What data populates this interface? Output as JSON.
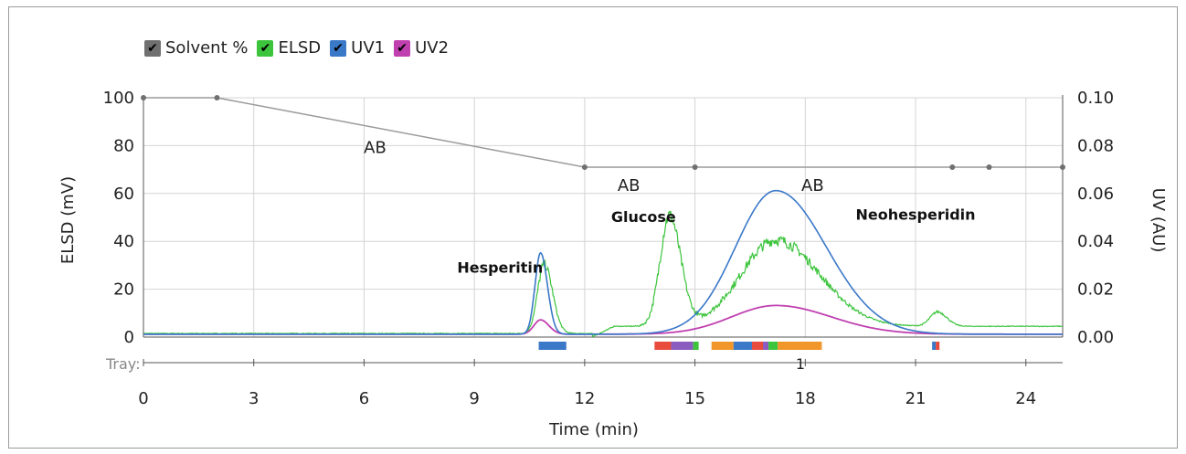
{
  "legend": [
    {
      "label": "Solvent %",
      "color": "#707070"
    },
    {
      "label": "ELSD",
      "color": "#3cc43c"
    },
    {
      "label": "UV1",
      "color": "#3a78c8"
    },
    {
      "label": "UV2",
      "color": "#c040b0"
    }
  ],
  "check_glyph": "✔",
  "tray_label": "Tray:",
  "tray_number": "1",
  "chart_data": {
    "type": "line",
    "xlabel": "Time (min)",
    "ylabel_left": "ELSD (mV)",
    "ylabel_right": "UV (AU)",
    "xlim": [
      0,
      25
    ],
    "ylim_left": [
      0,
      100
    ],
    "ylim_right": [
      0,
      0.1
    ],
    "x_ticks": [
      "0",
      "3",
      "6",
      "9",
      "12",
      "15",
      "18",
      "21",
      "24"
    ],
    "y_left_ticks": [
      "0",
      "20",
      "40",
      "60",
      "80",
      "100"
    ],
    "y_right_ticks": [
      "0.00",
      "0.02",
      "0.04",
      "0.06",
      "0.08",
      "0.10"
    ],
    "grid": true,
    "solvent_points": [
      [
        0,
        100
      ],
      [
        2,
        100
      ],
      [
        12,
        71
      ],
      [
        15,
        71
      ],
      [
        22,
        71
      ],
      [
        23,
        71
      ],
      [
        25,
        71
      ]
    ],
    "solvent_labels": [
      {
        "text": "AB",
        "x": 6.3,
        "y": 77
      },
      {
        "text": "AB",
        "x": 13.2,
        "y": 61
      },
      {
        "text": "AB",
        "x": 18.2,
        "y": 61
      }
    ],
    "peak_labels": [
      {
        "text": "Hesperitin",
        "x": 9.7,
        "y": 27
      },
      {
        "text": "Glucose",
        "x": 13.6,
        "y": 48
      },
      {
        "text": "Neohesperidin",
        "x": 21.0,
        "y": 49
      }
    ],
    "series": [
      {
        "name": "ELSD",
        "color": "#3cc43c",
        "baseline_start": 1.5,
        "baseline_end": 4.5,
        "peaks": [
          {
            "center": 10.9,
            "height": 29,
            "width": 0.18
          },
          {
            "center": 14.3,
            "height": 46,
            "width": 0.25
          },
          {
            "center": 17.2,
            "height": 36,
            "width": 0.95
          },
          {
            "center": 21.6,
            "height": 6,
            "width": 0.2
          }
        ]
      },
      {
        "name": "UV1",
        "color": "#3a78c8",
        "peaks": [
          {
            "center": 10.8,
            "height": 0.034,
            "width": 0.15
          },
          {
            "center": 17.2,
            "height": 0.06,
            "width": 1.1
          }
        ]
      },
      {
        "name": "UV2",
        "color": "#c040b0",
        "peaks": [
          {
            "center": 10.8,
            "height": 0.006,
            "width": 0.18
          },
          {
            "center": 17.2,
            "height": 0.012,
            "width": 1.2
          }
        ]
      }
    ],
    "fractions": [
      {
        "start": 10.75,
        "end": 11.5,
        "color": "#3a78c8"
      },
      {
        "start": 13.9,
        "end": 14.35,
        "color": "#e84a3c"
      },
      {
        "start": 14.35,
        "end": 14.95,
        "color": "#8a5cc0"
      },
      {
        "start": 14.95,
        "end": 15.1,
        "color": "#3cc43c"
      },
      {
        "start": 15.45,
        "end": 16.05,
        "color": "#f0962a"
      },
      {
        "start": 16.05,
        "end": 16.55,
        "color": "#3a78c8"
      },
      {
        "start": 16.55,
        "end": 16.85,
        "color": "#e84a3c"
      },
      {
        "start": 16.85,
        "end": 17.0,
        "color": "#8a5cc0"
      },
      {
        "start": 17.0,
        "end": 17.25,
        "color": "#3cc43c"
      },
      {
        "start": 17.25,
        "end": 18.45,
        "color": "#f0962a"
      },
      {
        "start": 21.45,
        "end": 21.55,
        "color": "#3a78c8"
      },
      {
        "start": 21.55,
        "end": 21.65,
        "color": "#e84a3c"
      }
    ]
  }
}
